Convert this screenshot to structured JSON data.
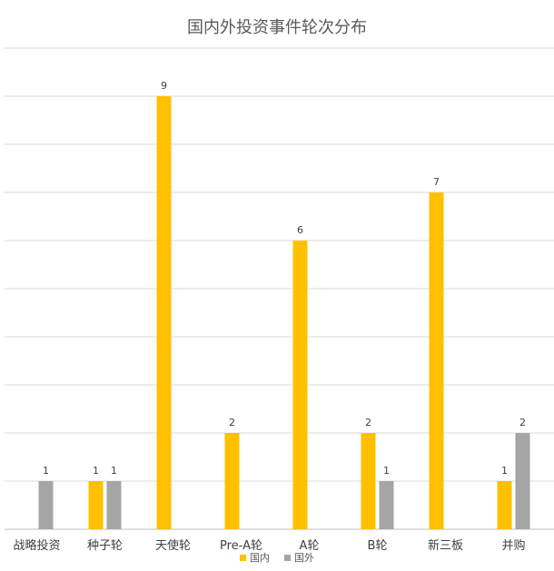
{
  "chart_data": {
    "type": "bar",
    "title": "国内外投资事件轮次分布",
    "categories": [
      "战略投资",
      "种子轮",
      "天使轮",
      "Pre-A轮",
      "A轮",
      "B轮",
      "新三板",
      "并购"
    ],
    "series": [
      {
        "name": "国内",
        "color": "#FFC000",
        "values": [
          null,
          1,
          9,
          2,
          6,
          2,
          7,
          1
        ]
      },
      {
        "name": "国外",
        "color": "#A5A5A5",
        "values": [
          1,
          1,
          null,
          null,
          null,
          1,
          null,
          2
        ]
      }
    ],
    "ylim": [
      0,
      10
    ],
    "grid": true,
    "legend_position": "bottom"
  }
}
